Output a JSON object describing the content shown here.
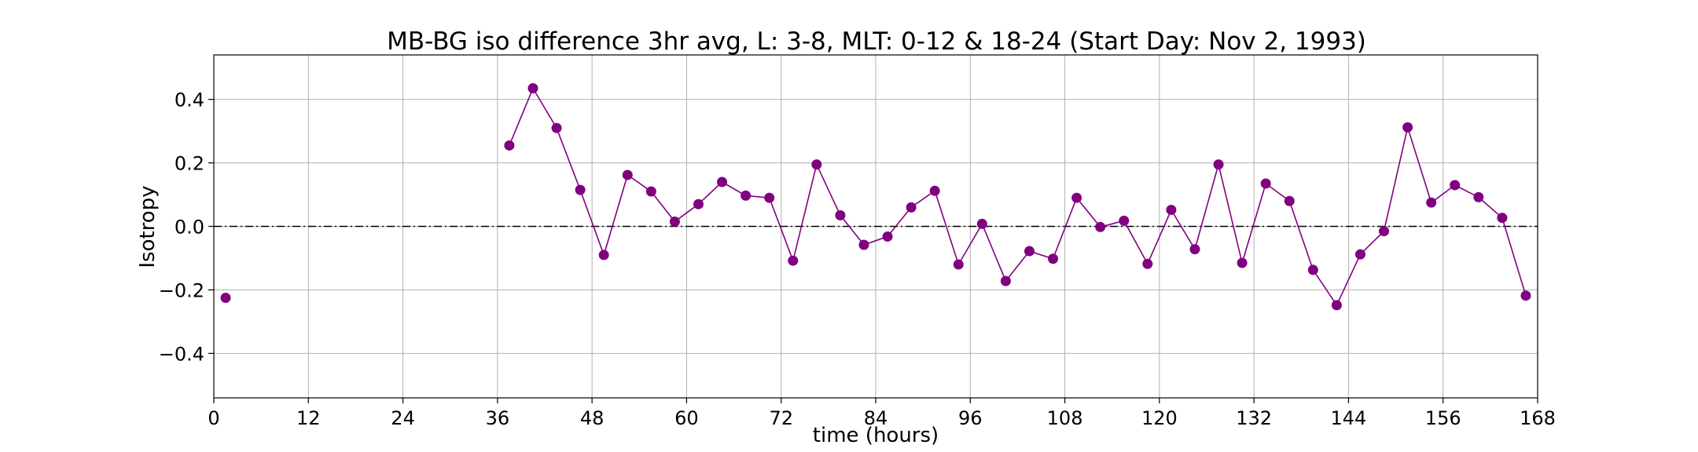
{
  "chart_data": {
    "type": "line",
    "title": "MB-BG iso difference 3hr avg, L: 3-8, MLT: 0-12 & 18-24 (Start Day: Nov 2, 1993)",
    "xlabel": "time (hours)",
    "ylabel": "Isotropy",
    "xlim": [
      0,
      168
    ],
    "ylim": [
      -0.54,
      0.54
    ],
    "xticks": [
      0,
      12,
      24,
      36,
      48,
      60,
      72,
      84,
      96,
      108,
      120,
      132,
      144,
      156,
      168
    ],
    "yticks": [
      -0.4,
      -0.2,
      0.0,
      0.2,
      0.4
    ],
    "ytick_labels": [
      "−0.4",
      "−0.2",
      "0.0",
      "0.2",
      "0.4"
    ],
    "grid": true,
    "reference_line": {
      "y": 0.0,
      "style": "dash-dot",
      "color": "#000000"
    },
    "series": [
      {
        "color": "#800080",
        "x": [
          1.5,
          37.5,
          40.5,
          43.5,
          46.5,
          49.5,
          52.5,
          55.5,
          58.5,
          61.5,
          64.5,
          67.5,
          70.5,
          73.5,
          76.5,
          79.5,
          82.5,
          85.5,
          88.5,
          91.5,
          94.5,
          97.5,
          100.5,
          103.5,
          106.5,
          109.5,
          112.5,
          115.5,
          118.5,
          121.5,
          124.5,
          127.5,
          130.5,
          133.5,
          136.5,
          139.5,
          142.5,
          145.5,
          148.5,
          151.5,
          154.5,
          157.5,
          160.5,
          163.5,
          166.5
        ],
        "y": [
          -0.225,
          0.255,
          0.435,
          0.31,
          0.115,
          -0.09,
          0.162,
          0.11,
          0.015,
          0.07,
          0.14,
          0.097,
          0.09,
          -0.108,
          0.195,
          0.035,
          -0.058,
          -0.032,
          0.06,
          0.112,
          -0.12,
          0.008,
          -0.172,
          -0.078,
          -0.102,
          0.09,
          -0.002,
          0.018,
          -0.118,
          0.052,
          -0.072,
          0.195,
          -0.115,
          0.135,
          0.08,
          -0.137,
          -0.248,
          -0.088,
          -0.015,
          0.312,
          0.075,
          0.13,
          0.092,
          0.027,
          -0.218
        ],
        "segments": [
          [
            0,
            0
          ],
          [
            1,
            44
          ]
        ]
      }
    ]
  }
}
